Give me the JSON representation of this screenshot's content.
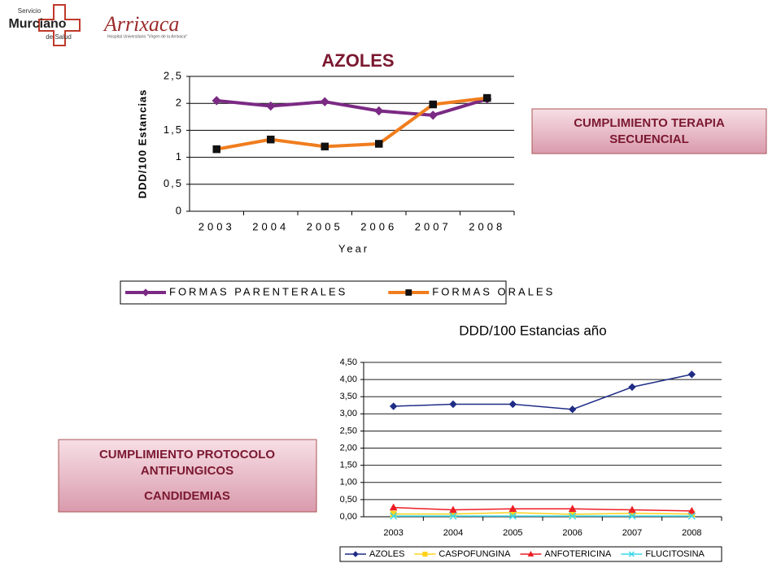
{
  "logos": {
    "servicio": "Servicio",
    "murciano": "Murciano",
    "de_salud": "de Salud",
    "arrixaca": "Arrixaca",
    "hospital": "Hospital Universitario \"Virgen de la Arrixaca\""
  },
  "boxes": [
    {
      "lines": [
        "CUMPLIMIENTO TERAPIA",
        "SECUENCIAL"
      ]
    },
    {
      "lines": [
        "CUMPLIMIENTO PROTOCOLO",
        "ANTIFUNGICOS",
        "CANDIDEMIAS"
      ]
    }
  ],
  "chart_data": [
    {
      "type": "line",
      "title": "AZOLES",
      "y_label": "DDD/100 Estancias",
      "x_label": "Year",
      "categories": [
        "2003",
        "2004",
        "2005",
        "2006",
        "2007",
        "2008"
      ],
      "ylim": [
        0,
        2.5
      ],
      "yticks": [
        0,
        {
          "value": 0.5,
          "label": "0,5"
        },
        1,
        {
          "value": 1.5,
          "label": "1,5"
        },
        2,
        {
          "value": 2.5,
          "label": "2,5"
        }
      ],
      "grid": true,
      "series": [
        {
          "name": "FORMAS PARENTERALES",
          "color": "#7b2a84",
          "marker": "diamond",
          "values": [
            2.05,
            1.95,
            2.03,
            1.86,
            1.78,
            2.08
          ]
        },
        {
          "name": "FORMAS ORALES",
          "color": "#f07d1e",
          "marker": "square",
          "values": [
            1.15,
            1.33,
            1.2,
            1.25,
            1.98,
            2.1
          ]
        }
      ]
    },
    {
      "type": "line",
      "title": "DDD/100 Estancias año",
      "categories": [
        "2003",
        "2004",
        "2005",
        "2006",
        "2007",
        "2008"
      ],
      "ylim": [
        0,
        4.5
      ],
      "yticks": [
        {
          "value": 0,
          "label": "0,00"
        },
        {
          "value": 0.5,
          "label": "0,50"
        },
        {
          "value": 1,
          "label": "1,00"
        },
        {
          "value": 1.5,
          "label": "1,50"
        },
        {
          "value": 2,
          "label": "2,00"
        },
        {
          "value": 2.5,
          "label": "2,50"
        },
        {
          "value": 3,
          "label": "3,00"
        },
        {
          "value": 3.5,
          "label": "3,50"
        },
        {
          "value": 4,
          "label": "4,00"
        },
        {
          "value": 4.5,
          "label": "4,50"
        }
      ],
      "grid": true,
      "series": [
        {
          "name": "AZOLES",
          "color": "#1f2d86",
          "marker": "diamond",
          "values": [
            3.22,
            3.28,
            3.28,
            3.13,
            3.78,
            4.15
          ]
        },
        {
          "name": "CASPOFUNGINA",
          "color": "#ffd21a",
          "marker": "square",
          "values": [
            0.08,
            0.08,
            0.12,
            0.07,
            0.1,
            0.08
          ]
        },
        {
          "name": "ANFOTERICINA",
          "color": "#ee1c24",
          "marker": "triangle",
          "values": [
            0.27,
            0.2,
            0.23,
            0.23,
            0.2,
            0.17
          ]
        },
        {
          "name": "FLUCITOSINA",
          "color": "#3ad7e8",
          "marker": "x",
          "values": [
            0.02,
            0.02,
            0.02,
            0.02,
            0.02,
            0.02
          ]
        }
      ]
    }
  ]
}
